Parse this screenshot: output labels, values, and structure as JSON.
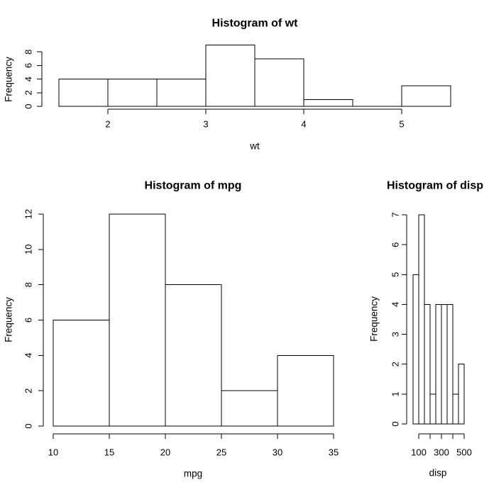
{
  "figure": {
    "background": "#ffffff",
    "stroke_color": "#000000",
    "bar_fill": "#ffffff"
  },
  "chart_data": [
    {
      "id": "wt",
      "type": "bar",
      "kind": "histogram",
      "title": "Histogram of wt",
      "xlabel": "wt",
      "ylabel": "Frequency",
      "bin_start": 1.5,
      "bin_width": 0.5,
      "bin_edges": [
        1.5,
        2,
        2.5,
        3,
        3.5,
        4,
        4.5,
        5,
        5.5
      ],
      "counts": [
        4,
        4,
        4,
        9,
        7,
        1,
        0,
        3
      ],
      "x_ticks": [
        2,
        3,
        4,
        5
      ],
      "x_tick_labels": [
        "2",
        "3",
        "4",
        "5"
      ],
      "y_ticks": [
        0,
        2,
        4,
        6,
        8
      ],
      "y_tick_labels": [
        "0",
        "2",
        "4",
        "6",
        "8"
      ],
      "xlim": [
        1.5,
        5.5
      ],
      "ylim": [
        0,
        9
      ],
      "grid": false,
      "legend": null
    },
    {
      "id": "mpg",
      "type": "bar",
      "kind": "histogram",
      "title": "Histogram of mpg",
      "xlabel": "mpg",
      "ylabel": "Frequency",
      "bin_start": 10,
      "bin_width": 5,
      "bin_edges": [
        10,
        15,
        20,
        25,
        30,
        35
      ],
      "counts": [
        6,
        12,
        8,
        2,
        4
      ],
      "x_ticks": [
        10,
        15,
        20,
        25,
        30,
        35
      ],
      "x_tick_labels": [
        "10",
        "15",
        "20",
        "25",
        "30",
        "35"
      ],
      "y_ticks": [
        0,
        2,
        4,
        6,
        8,
        10,
        12
      ],
      "y_tick_labels": [
        "0",
        "2",
        "4",
        "6",
        "8",
        "10",
        "12"
      ],
      "xlim": [
        10,
        35
      ],
      "ylim": [
        0,
        12
      ],
      "grid": false,
      "legend": null
    },
    {
      "id": "disp",
      "type": "bar",
      "kind": "histogram",
      "title": "Histogram of disp",
      "xlabel": "disp",
      "ylabel": "Frequency",
      "bin_start": 50,
      "bin_width": 50,
      "bin_edges": [
        50,
        100,
        150,
        200,
        250,
        300,
        350,
        400,
        450,
        500
      ],
      "counts": [
        5,
        7,
        4,
        1,
        4,
        4,
        4,
        1,
        2
      ],
      "x_ticks": [
        100,
        200,
        300,
        400,
        500
      ],
      "x_tick_labels": [
        "100",
        "",
        "300",
        "",
        "500"
      ],
      "y_ticks": [
        0,
        1,
        2,
        3,
        4,
        5,
        6,
        7
      ],
      "y_tick_labels": [
        "0",
        "1",
        "2",
        "3",
        "4",
        "5",
        "6",
        "7"
      ],
      "xlim": [
        50,
        500
      ],
      "ylim": [
        0,
        7
      ],
      "grid": false,
      "legend": null
    }
  ]
}
